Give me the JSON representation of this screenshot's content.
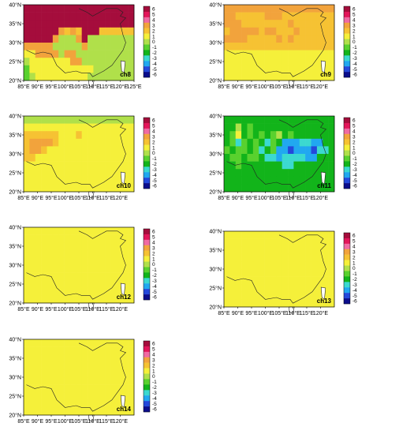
{
  "figure": {
    "lat_ticks": [
      "20°N",
      "25°N",
      "30°N",
      "35°N",
      "40°N"
    ],
    "lon_ticks_wide": [
      "85°E",
      "90°E",
      "95°E",
      "100°E",
      "105°E",
      "110°E",
      "115°E",
      "120°E",
      "125°E"
    ],
    "lon_ticks": [
      "85°E",
      "90°E",
      "95°E",
      "100°E",
      "105°E",
      "110°E",
      "115°E",
      "120°E"
    ],
    "colorbar_labels": [
      "6",
      "5",
      "4",
      "3",
      "2",
      "1",
      "0",
      "-1",
      "-2",
      "-3",
      "-4",
      "-5",
      "-6"
    ],
    "colorbar_colors": [
      "#a50d3c",
      "#e3165a",
      "#f06aa3",
      "#f2a33c",
      "#f6c233",
      "#f5f03a",
      "#b0e04a",
      "#59d12e",
      "#12b41a",
      "#3bd9d0",
      "#21a8f0",
      "#2448db",
      "#0b0d8c"
    ]
  },
  "chart_data": [
    {
      "type": "heatmap",
      "title": "ch8",
      "lon_range": [
        85,
        125
      ],
      "lat_range": [
        20,
        40
      ],
      "grid": [
        "8866666888666666666",
        "6668886666866666666",
        "6666666866666666666",
        "8888663232866222222",
        "8866630003600000000",
        "3333300000300000000",
        "1133330330000000000",
        "0111111133000000000",
        "-1111111111110000000",
        "-1011111111100000000"
      ]
    },
    {
      "type": "heatmap",
      "title": "ch9",
      "lon_range": [
        85,
        125
      ],
      "lat_range": [
        20,
        40
      ],
      "grid": [
        "3333333333333333333",
        "3322222333222222222",
        "3332222222232222222",
        "2333332332223222222",
        "3333222223232222222",
        "2222222222222222222",
        "1111111111111111111",
        "1111111111111111111",
        "1111111111111111111",
        "1111111111111111111"
      ]
    },
    {
      "type": "heatmap",
      "title": "ch10",
      "lon_range": [
        85,
        125
      ],
      "lat_range": [
        20,
        40
      ],
      "grid": [
        "0000000000000000000",
        "1111111111111111111",
        "2222221112111111111",
        "2333321111111111111",
        "2332111111111111111",
        "2211111111111111111",
        "1111111111111111111",
        "1111111111111111111",
        "1111111111111111111",
        "1111111111111111111"
      ]
    },
    {
      "type": "heatmap",
      "title": "ch11",
      "lon_range": [
        85,
        125
      ],
      "lat_range": [
        20,
        40
      ],
      "grid": [
        "-2-2-2-2-2-2-2-2-2-2-2-2-2-2-2-2-2-2-2",
        "-2-20-2-1-2-2-2-2-2-2-2-2-2-2-2-2-2-2",
        "-2-11-2-1-2-1-2-10-2-1-2-2-2-2-2-2-2",
        "-2-1-3-1-2-1-2-3-1-2-4-4-4-3-3-4-4-2-2",
        "-1-2-1-1-2-1-3-2-1-4-4-5-4-4-4-5-3-3-2",
        "-2-1-1-2-1-1-2-3-3-4-3-3-3-3-4-4-2-2-2",
        "-2-2-1-2-2-2-2-2-2-2-3-3-2-2-2-2-2-2-2",
        "-2-2-2-2-2-2-2-2-2-2-2-2-2-2-2-2-2-2-2",
        "-2-2-2-2-2-2-2-2-2-2-2-2-2-2-2-2-2-2-2",
        "-2-2-2-2-2-2-2-2-2-2-2-2-2-2-2-2-2-2-2"
      ]
    },
    {
      "type": "heatmap",
      "title": "ch12",
      "lon_range": [
        85,
        125
      ],
      "lat_range": [
        20,
        40
      ],
      "grid": [
        "1111111111111111111",
        "1111111111111111111",
        "1111111111111111111",
        "1111111111111111111",
        "1111111111111111111",
        "1111111111111111111",
        "1111111111111111111",
        "1111111111111111111",
        "1111111111111111111",
        "1111111111111111111"
      ]
    },
    {
      "type": "heatmap",
      "title": "ch13",
      "lon_range": [
        85,
        125
      ],
      "lat_range": [
        20,
        40
      ],
      "grid": [
        "1111111111111111111",
        "1111111111111111111",
        "1111111111111111111",
        "1111111111111111111",
        "1111111111111111111",
        "1111111111111111111",
        "1111111111111111111",
        "1111111111111111111",
        "1111111111111111111",
        "1111111111111111111"
      ]
    },
    {
      "type": "heatmap",
      "title": "ch14",
      "lon_range": [
        85,
        125
      ],
      "lat_range": [
        20,
        40
      ],
      "grid": [
        "1111111111111111111",
        "1111111111111111111",
        "1111111111111111111",
        "1111111111111111111",
        "1111111111111111111",
        "1111111111111111111",
        "1111111111111111111",
        "1111111111111111111",
        "1111111111111111111",
        "1111111111111111111"
      ]
    }
  ]
}
